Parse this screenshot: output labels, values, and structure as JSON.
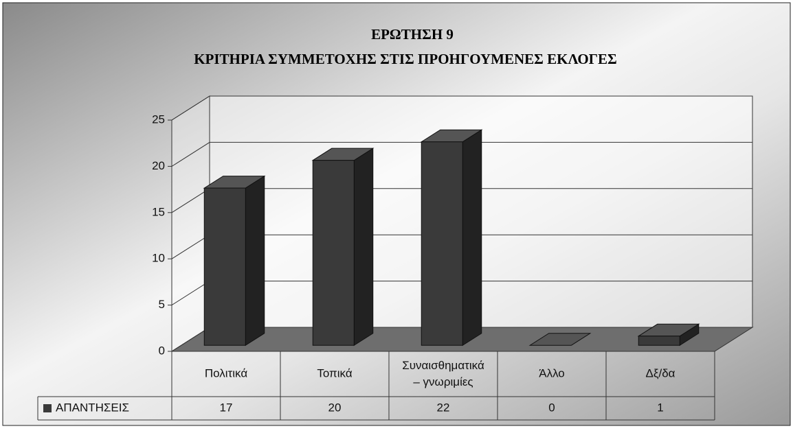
{
  "chart_data": {
    "type": "bar3d",
    "title": "ΕΡΩΤΗΣΗ 9",
    "subtitle": "ΚΡΙΤΗΡΙΑ ΣΥΜΜΕΤΟΧΗΣ ΣΤΙΣ ΠΡΟΗΓΟΥΜΕΝΕΣ ΕΚΛΟΓΕΣ",
    "categories": [
      "Πολιτικά",
      "Τοπικά",
      "Συναισθηματικά – γνωριμίες",
      "Άλλο",
      "Δξ/δα"
    ],
    "series": [
      {
        "name": "ΑΠΑΝΤΗΣΕΙΣ",
        "color": "#3a3a3a",
        "values": [
          17,
          20,
          22,
          0,
          1
        ]
      }
    ],
    "ylim": [
      0,
      25
    ],
    "yticks": [
      0,
      5,
      10,
      15,
      20,
      25
    ],
    "grid": true,
    "data_table": true
  }
}
